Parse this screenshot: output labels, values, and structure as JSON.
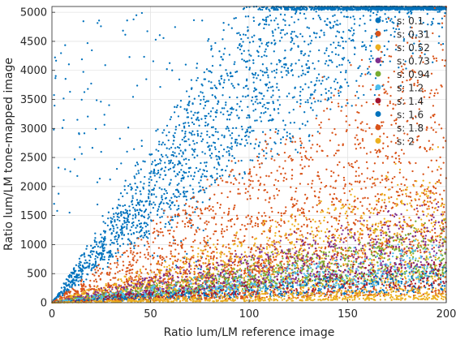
{
  "chart_data": {
    "type": "scatter",
    "xlabel": "Ratio lum/LM reference image",
    "ylabel": "Ratio lum/LM tone-mapped image",
    "xlim": [
      0,
      200
    ],
    "ylim": [
      0,
      5100
    ],
    "xticks": [
      0,
      50,
      100,
      150,
      200
    ],
    "xtick_labels": [
      "0",
      "50",
      "100",
      "150",
      "200"
    ],
    "yticks": [
      0,
      500,
      1000,
      1500,
      2000,
      2500,
      3000,
      3500,
      4000,
      4500,
      5000
    ],
    "ytick_labels": [
      "0",
      "500",
      "1000",
      "1500",
      "2000",
      "2500",
      "3000",
      "3500",
      "4000",
      "4500",
      "5000"
    ],
    "grid": true,
    "legend_position": "top-right",
    "series": [
      {
        "name": "s: 0.1",
        "color": "#0072BD",
        "slope_range": [
          24,
          50
        ]
      },
      {
        "name": "s: 0.31",
        "color": "#D95319",
        "slope_range": [
          5,
          25
        ]
      },
      {
        "name": "s: 0.52",
        "color": "#EDB120",
        "slope_range": [
          2,
          12
        ]
      },
      {
        "name": "s: 0.73",
        "color": "#7E2F8E",
        "slope_range": [
          3,
          9
        ]
      },
      {
        "name": "s: 0.94",
        "color": "#77AC30",
        "slope_range": [
          2.5,
          7
        ]
      },
      {
        "name": "s: 1.2",
        "color": "#4DBEEE",
        "slope_range": [
          2,
          5.5
        ]
      },
      {
        "name": "s: 1.4",
        "color": "#A2142F",
        "slope_range": [
          1.5,
          4
        ]
      },
      {
        "name": "s: 1.6",
        "color": "#0072BD",
        "slope_range": [
          1,
          3
        ]
      },
      {
        "name": "s: 1.8",
        "color": "#D95319",
        "slope_range": [
          0.7,
          2
        ]
      },
      {
        "name": "s: 2",
        "color": "#EDB120",
        "slope_range": [
          0.3,
          1.5
        ]
      }
    ]
  }
}
